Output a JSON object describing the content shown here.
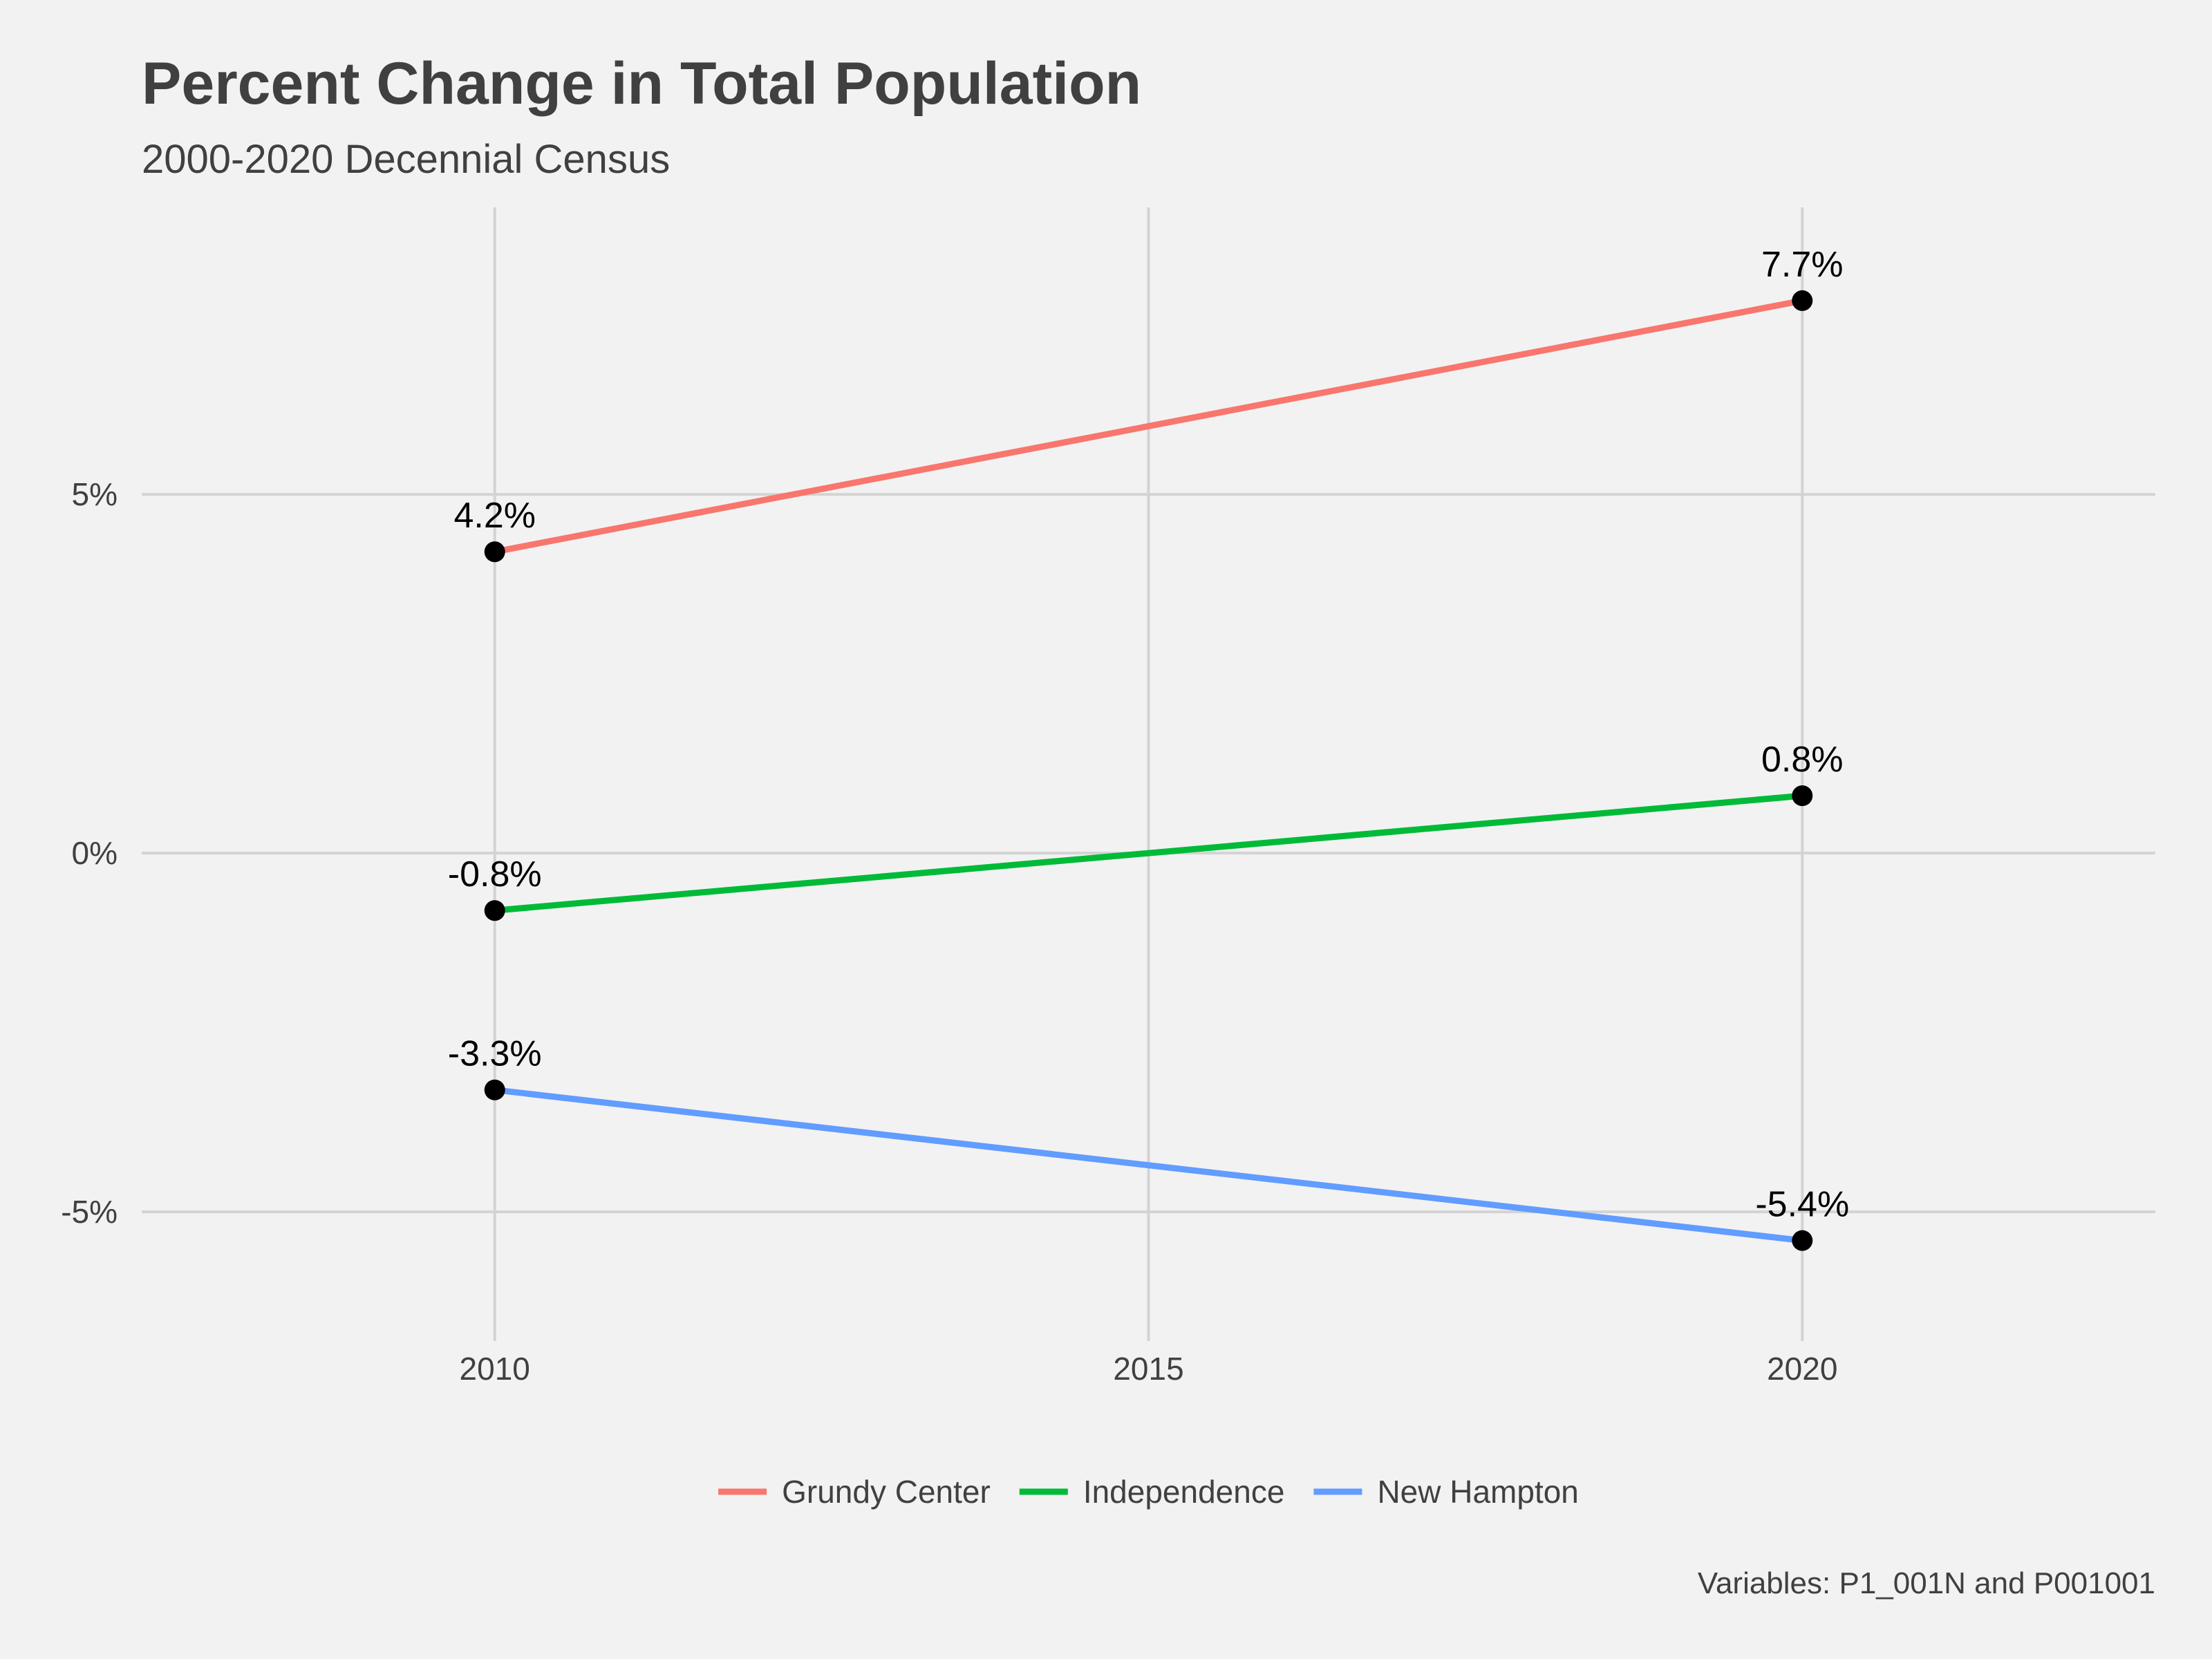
{
  "chart_data": {
    "type": "line",
    "title": "Percent Change in Total Population",
    "subtitle": "2000-2020 Decennial Census",
    "caption": "Variables: P1_001N and P001001",
    "x": [
      2010,
      2020
    ],
    "x_ticks": [
      2010,
      2015,
      2020
    ],
    "x_tick_labels": [
      "2010",
      "2015",
      "2020"
    ],
    "y_ticks": [
      -5,
      0,
      5
    ],
    "y_tick_labels": [
      "-5%",
      "0%",
      "5%"
    ],
    "xlim": [
      2007.3,
      2022.7
    ],
    "ylim": [
      -6.8,
      9.0
    ],
    "grid": true,
    "legend_position": "bottom",
    "series": [
      {
        "name": "Grundy Center",
        "color": "#F8766D",
        "values": [
          4.2,
          7.7
        ],
        "labels": [
          "4.2%",
          "7.7%"
        ]
      },
      {
        "name": "Independence",
        "color": "#00BA38",
        "values": [
          -0.8,
          0.8
        ],
        "labels": [
          "-0.8%",
          "0.8%"
        ]
      },
      {
        "name": "New Hampton",
        "color": "#619CFF",
        "values": [
          -3.3,
          -5.4
        ],
        "labels": [
          "-3.3%",
          "-5.4%"
        ]
      }
    ]
  }
}
